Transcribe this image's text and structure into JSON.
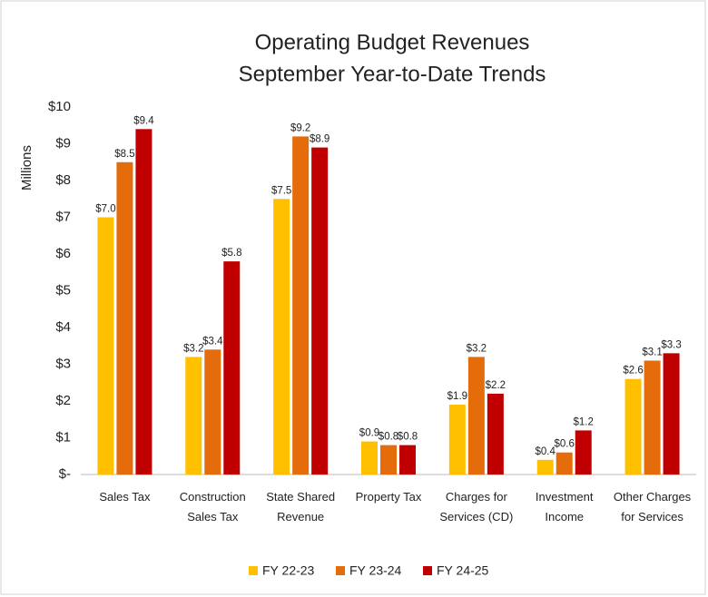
{
  "chart_data": {
    "type": "bar",
    "title": "Operating Budget Revenues",
    "subtitle": "September Year-to-Date Trends",
    "y_label": "Millions",
    "categories": [
      "Sales Tax",
      "Construction Sales Tax",
      "State Shared Revenue",
      "Property Tax",
      "Charges for Services (CD)",
      "Investment Income",
      "Other Charges for Services"
    ],
    "series": [
      {
        "name": "FY 22-23",
        "color": "#ffc000",
        "values": [
          7.0,
          3.2,
          7.5,
          0.9,
          1.9,
          0.4,
          2.6
        ],
        "value_labels": [
          "$7.0",
          "$3.2",
          "$7.5",
          "$0.9",
          "$1.9",
          "$0.4",
          "$2.6"
        ]
      },
      {
        "name": "FY 23-24",
        "color": "#e46c0a",
        "values": [
          8.5,
          3.4,
          9.2,
          0.8,
          3.2,
          0.6,
          3.1
        ],
        "value_labels": [
          "$8.5",
          "$3.4",
          "$9.2",
          "$0.8",
          "$3.2",
          "$0.6",
          "$3.1"
        ]
      },
      {
        "name": "FY 24-25",
        "color": "#c00000",
        "values": [
          9.4,
          5.8,
          8.9,
          0.8,
          2.2,
          1.2,
          3.3
        ],
        "value_labels": [
          "$9.4",
          "$5.8",
          "$8.9",
          "$0.8",
          "$2.2",
          "$1.2",
          "$3.3"
        ]
      }
    ],
    "ylim": [
      0,
      10
    ],
    "yticks": [
      {
        "value": 0,
        "label": "$-"
      },
      {
        "value": 1,
        "label": "$1"
      },
      {
        "value": 2,
        "label": "$2"
      },
      {
        "value": 3,
        "label": "$3"
      },
      {
        "value": 4,
        "label": "$4"
      },
      {
        "value": 5,
        "label": "$5"
      },
      {
        "value": 6,
        "label": "$6"
      },
      {
        "value": 7,
        "label": "$7"
      },
      {
        "value": 8,
        "label": "$8"
      },
      {
        "value": 9,
        "label": "$9"
      },
      {
        "value": 10,
        "label": "$10"
      }
    ],
    "grid": false,
    "legend": "bottom"
  }
}
